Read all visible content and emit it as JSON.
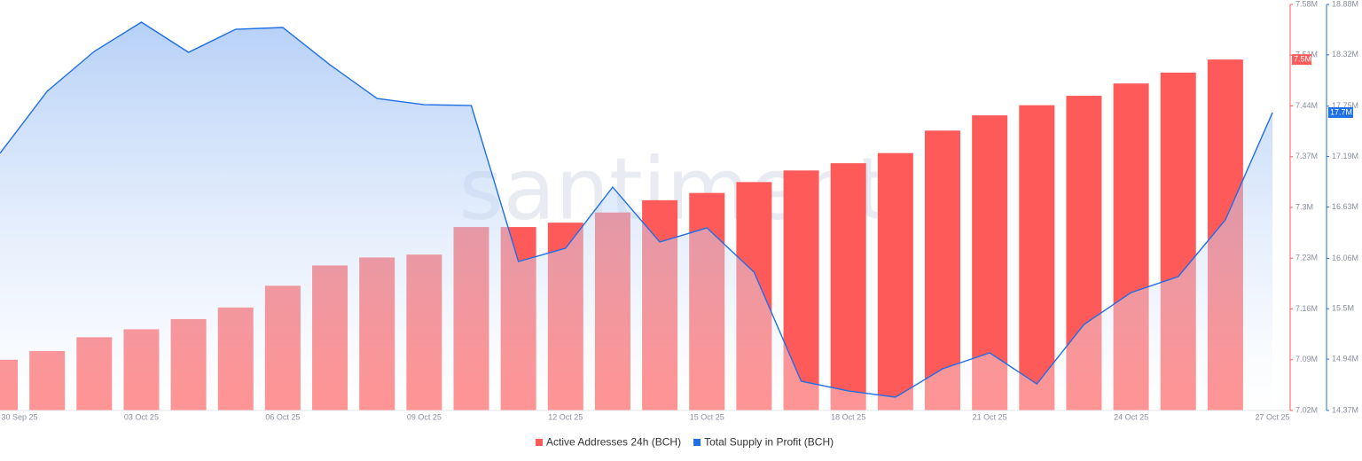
{
  "chart_data": {
    "type": "bar-area",
    "watermark": "santiment",
    "categories": [
      "30 Sep 25",
      null,
      null,
      "03 Oct 25",
      null,
      null,
      "06 Oct 25",
      null,
      null,
      "09 Oct 25",
      null,
      null,
      "12 Oct 25",
      null,
      null,
      "15 Oct 25",
      null,
      null,
      "18 Oct 25",
      null,
      null,
      "21 Oct 25",
      null,
      null,
      "24 Oct 25",
      null,
      null,
      "27 Oct 25"
    ],
    "series": [
      {
        "name": "Active Addresses 24h (BCH)",
        "color": "#ff5a5a",
        "type": "bar",
        "axis": "y",
        "values": [
          7.09,
          7.102,
          7.121,
          7.132,
          7.146,
          7.162,
          7.192,
          7.22,
          7.231,
          7.235,
          7.273,
          7.273,
          7.279,
          7.293,
          7.31,
          7.32,
          7.335,
          7.351,
          7.361,
          7.375,
          7.406,
          7.427,
          7.441,
          7.454,
          7.471,
          7.486,
          7.504,
          null
        ],
        "value_labels": [
          null,
          null,
          null,
          null,
          null,
          null,
          null,
          null,
          null,
          null,
          null,
          null,
          null,
          null,
          null,
          null,
          null,
          null,
          null,
          null,
          null,
          null,
          null,
          null,
          null,
          null,
          "7.5M",
          null
        ]
      },
      {
        "name": "Total Supply in Profit (BCH)",
        "color": "#1f6fe5",
        "type": "area",
        "axis": "y2",
        "values": [
          17.226,
          17.915,
          18.358,
          18.683,
          18.348,
          18.604,
          18.624,
          18.21,
          17.836,
          17.767,
          17.757,
          16.024,
          16.172,
          16.851,
          16.241,
          16.398,
          15.906,
          14.695,
          14.587,
          14.518,
          14.833,
          15.01,
          14.665,
          15.325,
          15.68,
          15.857,
          16.487,
          17.679
        ],
        "value_labels": [
          null,
          null,
          null,
          null,
          null,
          null,
          null,
          null,
          null,
          null,
          null,
          null,
          null,
          null,
          null,
          null,
          null,
          null,
          null,
          null,
          null,
          null,
          null,
          null,
          null,
          null,
          null,
          "17.7M"
        ]
      }
    ],
    "ylim": [
      7.02,
      7.58
    ],
    "yticks": [
      {
        "value": 7.02,
        "label": "7.02M"
      },
      {
        "value": 7.09,
        "label": "7.09M"
      },
      {
        "value": 7.16,
        "label": "7.16M"
      },
      {
        "value": 7.23,
        "label": "7.23M"
      },
      {
        "value": 7.3,
        "label": "7.3M"
      },
      {
        "value": 7.37,
        "label": "7.37M"
      },
      {
        "value": 7.44,
        "label": "7.44M"
      },
      {
        "value": 7.51,
        "label": "7.51M"
      },
      {
        "value": 7.58,
        "label": "7.58M"
      }
    ],
    "y2lim": [
      14.37,
      18.88
    ],
    "y2ticks": [
      {
        "value": 14.37,
        "label": "14.37M"
      },
      {
        "value": 14.94,
        "label": "14.94M"
      },
      {
        "value": 15.5,
        "label": "15.5M"
      },
      {
        "value": 16.06,
        "label": "16.06M"
      },
      {
        "value": 16.63,
        "label": "16.63M"
      },
      {
        "value": 17.19,
        "label": "17.19M"
      },
      {
        "value": 17.75,
        "label": "17.75M"
      },
      {
        "value": 18.32,
        "label": "18.32M"
      },
      {
        "value": 18.88,
        "label": "18.88M"
      }
    ]
  }
}
